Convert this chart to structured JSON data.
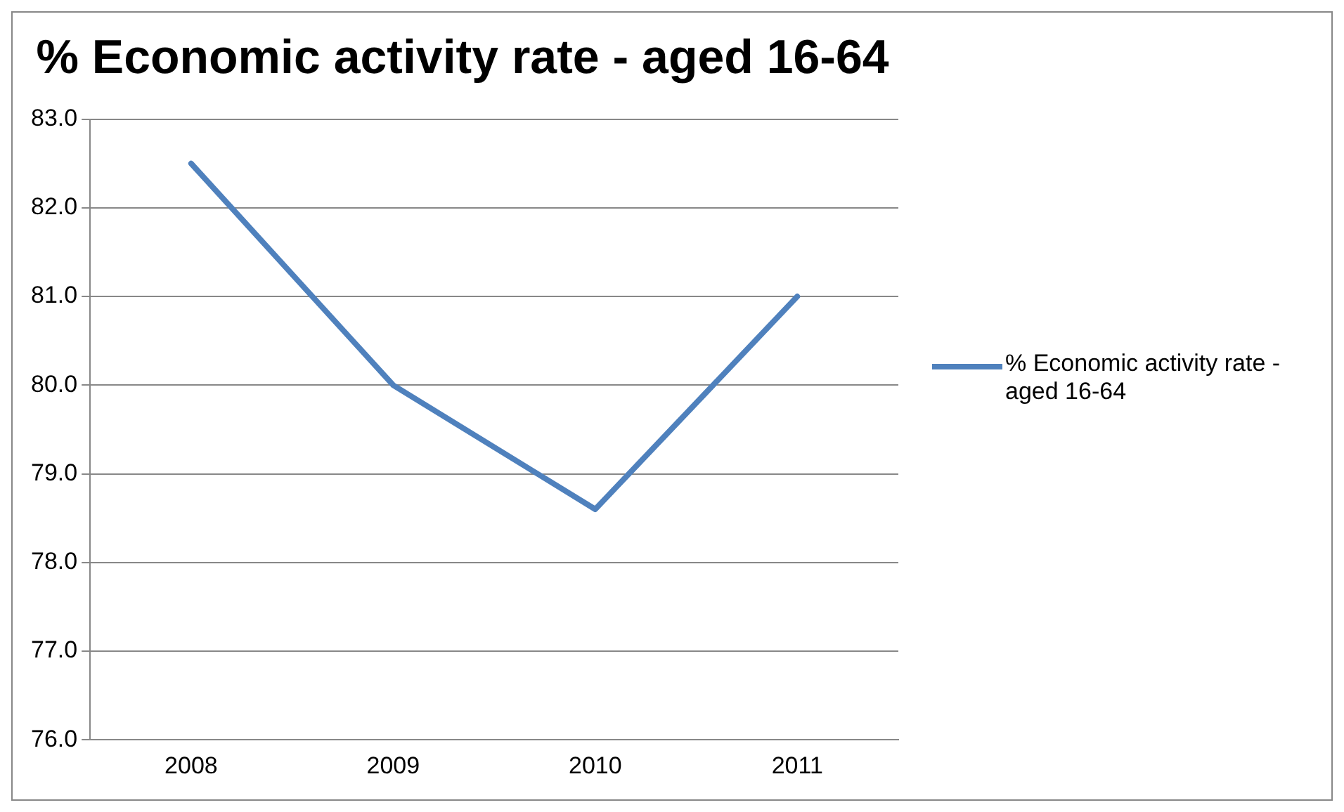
{
  "chart_data": {
    "type": "line",
    "title": "% Economic activity rate - aged 16-64",
    "categories": [
      "2008",
      "2009",
      "2010",
      "2011"
    ],
    "series": [
      {
        "name": "% Economic activity rate - aged 16-64",
        "color": "#4f81bd",
        "values": [
          82.5,
          80.0,
          78.6,
          81.0
        ]
      }
    ],
    "ylim": [
      76,
      83
    ],
    "yticks": [
      {
        "value": 76,
        "label": "76.0"
      },
      {
        "value": 77,
        "label": "77.0"
      },
      {
        "value": 78,
        "label": "78.0"
      },
      {
        "value": 79,
        "label": "79.0"
      },
      {
        "value": 80,
        "label": "80.0"
      },
      {
        "value": 81,
        "label": "81.0"
      },
      {
        "value": 82,
        "label": "82.0"
      },
      {
        "value": 83,
        "label": "83.0"
      }
    ],
    "grid": "y",
    "legend": "right",
    "marker": "none",
    "line_style": "solid"
  }
}
